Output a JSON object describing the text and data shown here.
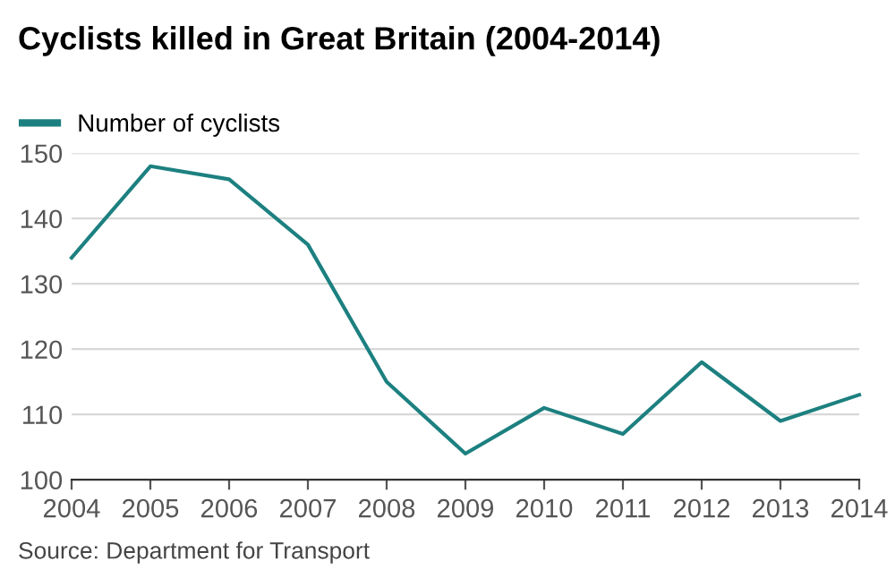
{
  "chart_data": {
    "type": "line",
    "title": "Cyclists killed in Great Britain (2004-2014)",
    "categories": [
      "2004",
      "2005",
      "2006",
      "2007",
      "2008",
      "2009",
      "2010",
      "2011",
      "2012",
      "2013",
      "2014"
    ],
    "series": [
      {
        "name": "Number of cyclists",
        "color": "#1d8080",
        "values": [
          134,
          148,
          146,
          136,
          115,
          104,
          111,
          107,
          118,
          109,
          113
        ]
      }
    ],
    "ylim": [
      100,
      150
    ],
    "yticks": [
      100,
      110,
      120,
      130,
      140,
      150
    ],
    "grid": "y",
    "legend": "top left",
    "marker": "none",
    "line_style": "solid",
    "annotations": [
      "Source: Department for Transport"
    ]
  }
}
